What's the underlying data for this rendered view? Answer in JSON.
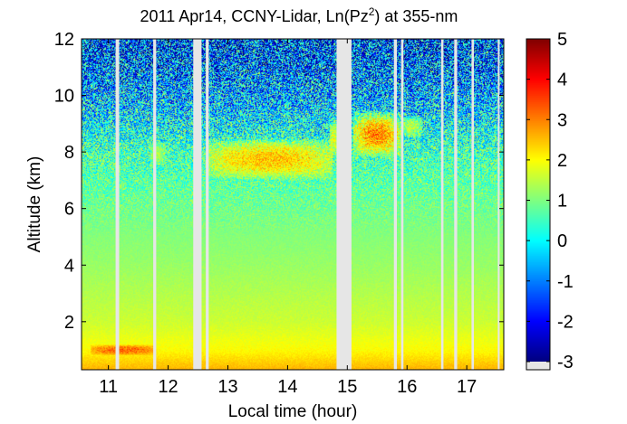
{
  "chart_data": {
    "type": "heatmap",
    "title": "2011 Apr14, CCNY-Lidar, Ln(Pz",
    "title_superscript": "2",
    "title_suffix": ") at 355-nm",
    "xlabel": "Local time (hour)",
    "ylabel": "Altitude (km)",
    "xlim": [
      10.55,
      17.62
    ],
    "ylim": [
      0.3,
      12.0
    ],
    "x_ticks": [
      11,
      12,
      13,
      14,
      15,
      16,
      17
    ],
    "x_tick_labels": [
      "11",
      "12",
      "13",
      "14",
      "15",
      "16",
      "17"
    ],
    "y_ticks": [
      2,
      4,
      6,
      8,
      10,
      12
    ],
    "y_tick_labels": [
      "2",
      "4",
      "6",
      "8",
      "10",
      "12"
    ],
    "colorbar": {
      "colormap": "jet",
      "range": [
        -3,
        5
      ],
      "ticks": [
        -3,
        -2,
        -1,
        0,
        1,
        2,
        3,
        4,
        5
      ],
      "tick_labels": [
        "-3",
        "-2",
        "-1",
        "0",
        "1",
        "2",
        "3",
        "4",
        "5"
      ],
      "no_data_color": "#e6e6e6"
    },
    "no_data_intervals_hour": [
      [
        11.12,
        11.18
      ],
      [
        11.75,
        11.8
      ],
      [
        12.42,
        12.56
      ],
      [
        12.63,
        12.68
      ],
      [
        14.82,
        15.07
      ],
      [
        15.78,
        15.83
      ],
      [
        15.9,
        15.94
      ],
      [
        16.57,
        16.61
      ],
      [
        16.79,
        16.84
      ],
      [
        17.08,
        17.12
      ],
      [
        17.52,
        17.55
      ]
    ],
    "value_profile": [
      {
        "altitude_km": 0.3,
        "value": 2.6
      },
      {
        "altitude_km": 1.0,
        "value": 2.0
      },
      {
        "altitude_km": 2.0,
        "value": 1.6
      },
      {
        "altitude_km": 4.0,
        "value": 1.2
      },
      {
        "altitude_km": 6.0,
        "value": 0.9
      },
      {
        "altitude_km": 8.0,
        "value": 0.5
      },
      {
        "altitude_km": 10.0,
        "value": -0.6
      },
      {
        "altitude_km": 12.0,
        "value": -1.6
      }
    ],
    "features": [
      {
        "t_start": 12.65,
        "t_end": 14.75,
        "alt_bottom_km": 7.0,
        "alt_top_km": 8.5,
        "peak_value": 3.5
      },
      {
        "t_start": 14.7,
        "t_end": 14.85,
        "alt_bottom_km": 7.8,
        "alt_top_km": 9.2,
        "peak_value": 2.6
      },
      {
        "t_start": 15.1,
        "t_end": 15.9,
        "alt_bottom_km": 7.8,
        "alt_top_km": 9.5,
        "peak_value": 4.3
      },
      {
        "t_start": 15.9,
        "t_end": 16.25,
        "alt_bottom_km": 8.5,
        "alt_top_km": 9.3,
        "peak_value": 2.3
      },
      {
        "t_start": 11.7,
        "t_end": 11.95,
        "alt_bottom_km": 7.5,
        "alt_top_km": 8.4,
        "peak_value": 2.0
      },
      {
        "t_start": 10.7,
        "t_end": 11.8,
        "alt_bottom_km": 0.8,
        "alt_top_km": 1.2,
        "peak_value": 4.2
      }
    ],
    "colors": {
      "frame": "#000000",
      "background": "#ffffff",
      "no_data": "#e6e6e6"
    }
  }
}
